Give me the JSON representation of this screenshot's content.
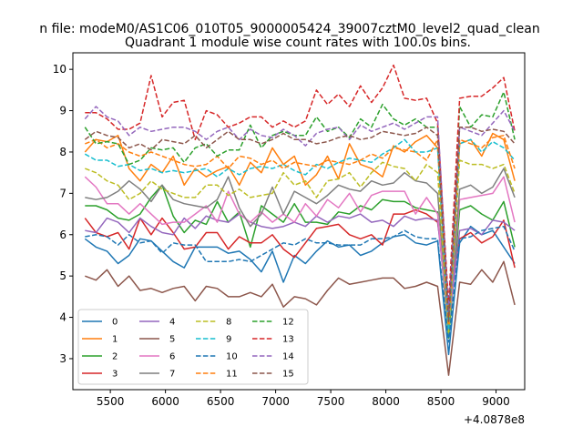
{
  "chart_data": {
    "type": "line",
    "suptitle": "n file: modeM0/AS1C06_010T05_9000005424_39007cztM0_level2_quad_clean",
    "title": "Quadrant 1 module wise count rates with 100.0s bins.",
    "xlabel": "",
    "ylabel": "",
    "x_offset_label": "+4.0878e8",
    "xlim": [
      5160,
      9260
    ],
    "ylim": [
      2.25,
      10.4
    ],
    "xticks": [
      5500,
      6000,
      6500,
      7000,
      7500,
      8000,
      8500,
      9000
    ],
    "yticks": [
      3,
      4,
      5,
      6,
      7,
      8,
      9,
      10
    ],
    "grid": false,
    "legend_position": "lower-left",
    "x": [
      5270,
      5370,
      5470,
      5570,
      5670,
      5770,
      5870,
      5970,
      6070,
      6170,
      6270,
      6370,
      6470,
      6570,
      6670,
      6770,
      6870,
      6970,
      7070,
      7170,
      7270,
      7370,
      7470,
      7570,
      7670,
      7770,
      7870,
      7970,
      8070,
      8170,
      8270,
      8370,
      8470,
      8570,
      8670,
      8770,
      8870,
      8970,
      9070,
      9170
    ],
    "series": [
      {
        "name": "0",
        "color": "#1f77b4",
        "dash": "solid",
        "values": [
          5.9,
          5.7,
          5.6,
          5.3,
          5.5,
          5.9,
          5.85,
          5.6,
          5.35,
          5.2,
          5.7,
          5.7,
          5.7,
          5.55,
          5.6,
          5.4,
          5.1,
          5.6,
          4.85,
          5.5,
          5.3,
          5.6,
          5.85,
          5.7,
          5.75,
          5.5,
          5.6,
          5.8,
          5.95,
          6.0,
          5.8,
          5.75,
          5.85,
          3.1,
          5.8,
          6.2,
          6.0,
          6.1,
          5.7,
          5.3
        ]
      },
      {
        "name": "1",
        "color": "#ff7f0e",
        "dash": "solid",
        "values": [
          8.0,
          8.3,
          8.25,
          8.4,
          7.6,
          7.3,
          7.7,
          7.5,
          7.9,
          7.2,
          7.6,
          7.4,
          7.55,
          7.65,
          7.2,
          7.75,
          7.5,
          8.1,
          7.7,
          7.9,
          7.2,
          7.45,
          7.9,
          7.35,
          8.2,
          7.7,
          7.6,
          7.4,
          8.15,
          8.0,
          8.25,
          8.4,
          8.1,
          3.6,
          8.2,
          8.3,
          7.9,
          8.45,
          8.3,
          7.3
        ]
      },
      {
        "name": "2",
        "color": "#2ca02c",
        "dash": "solid",
        "values": [
          6.7,
          6.7,
          6.6,
          6.4,
          6.35,
          6.5,
          6.9,
          7.2,
          6.45,
          6.05,
          6.35,
          6.25,
          6.8,
          6.3,
          6.55,
          5.7,
          6.7,
          6.5,
          6.3,
          6.75,
          6.3,
          6.3,
          6.25,
          6.55,
          6.5,
          6.7,
          6.6,
          6.85,
          6.8,
          6.8,
          6.65,
          6.6,
          6.55,
          3.5,
          6.6,
          6.7,
          6.5,
          6.35,
          6.8,
          5.7
        ]
      },
      {
        "name": "3",
        "color": "#d62728",
        "dash": "solid",
        "values": [
          6.4,
          6.05,
          5.95,
          6.05,
          5.65,
          6.4,
          6.0,
          6.4,
          6.05,
          5.65,
          5.7,
          6.05,
          6.05,
          5.65,
          5.95,
          5.8,
          5.8,
          6.0,
          5.65,
          5.45,
          5.8,
          6.15,
          6.2,
          6.25,
          6.0,
          5.9,
          6.0,
          5.75,
          6.5,
          6.5,
          6.6,
          6.5,
          6.3,
          4.3,
          5.9,
          6.05,
          5.8,
          5.95,
          6.35,
          5.2
        ]
      },
      {
        "name": "4",
        "color": "#9467bd",
        "dash": "solid",
        "values": [
          6.1,
          6.05,
          6.4,
          6.3,
          6.05,
          6.4,
          6.2,
          6.05,
          6.0,
          6.4,
          6.15,
          6.45,
          6.35,
          6.3,
          6.5,
          6.3,
          6.2,
          6.15,
          6.2,
          6.3,
          6.2,
          6.45,
          6.3,
          6.45,
          6.4,
          6.5,
          6.3,
          6.35,
          6.2,
          6.45,
          6.35,
          6.4,
          6.35,
          3.8,
          6.1,
          6.15,
          6.0,
          6.35,
          6.3,
          6.1
        ]
      },
      {
        "name": "5",
        "color": "#8c564b",
        "dash": "solid",
        "values": [
          5.0,
          4.9,
          5.15,
          4.75,
          5.0,
          4.65,
          4.7,
          4.6,
          4.7,
          4.75,
          4.4,
          4.75,
          4.7,
          4.5,
          4.5,
          4.6,
          4.5,
          4.8,
          4.25,
          4.5,
          4.45,
          4.3,
          4.65,
          4.95,
          4.8,
          4.85,
          4.9,
          4.95,
          4.95,
          4.7,
          4.75,
          4.85,
          4.75,
          2.6,
          4.85,
          4.8,
          5.15,
          4.85,
          5.35,
          4.3
        ]
      },
      {
        "name": "6",
        "color": "#e377c2",
        "dash": "solid",
        "values": [
          7.4,
          7.15,
          6.75,
          6.75,
          6.5,
          6.75,
          6.5,
          6.25,
          6.3,
          6.3,
          6.5,
          6.7,
          6.3,
          7.05,
          6.5,
          6.3,
          6.55,
          6.3,
          6.5,
          6.3,
          6.75,
          6.45,
          6.85,
          6.65,
          7.0,
          6.55,
          6.95,
          7.05,
          7.05,
          7.05,
          6.5,
          6.9,
          6.5,
          3.7,
          6.85,
          6.9,
          6.95,
          7.0,
          7.4,
          6.3
        ]
      },
      {
        "name": "7",
        "color": "#7f7f7f",
        "dash": "solid",
        "values": [
          6.9,
          6.85,
          6.9,
          7.05,
          7.3,
          7.1,
          6.8,
          7.2,
          6.85,
          6.75,
          6.7,
          6.65,
          6.85,
          7.4,
          6.65,
          6.2,
          6.5,
          7.15,
          6.5,
          7.05,
          6.9,
          6.75,
          6.95,
          7.2,
          7.1,
          7.05,
          7.3,
          7.2,
          7.25,
          7.5,
          7.3,
          7.25,
          7.0,
          3.8,
          7.1,
          7.2,
          7.0,
          7.15,
          7.6,
          6.9
        ]
      },
      {
        "name": "8",
        "color": "#bcbd22",
        "dash": "dashed",
        "values": [
          7.6,
          7.5,
          7.3,
          7.2,
          6.85,
          7.0,
          7.3,
          7.1,
          7.0,
          6.9,
          6.9,
          7.2,
          7.2,
          6.95,
          7.1,
          6.9,
          6.95,
          7.0,
          7.5,
          7.2,
          7.3,
          6.9,
          7.3,
          7.35,
          7.5,
          7.15,
          7.5,
          7.75,
          7.65,
          7.6,
          7.3,
          7.7,
          7.5,
          3.6,
          7.8,
          7.7,
          7.7,
          7.6,
          7.7,
          7.0
        ]
      },
      {
        "name": "9",
        "color": "#17becf",
        "dash": "dashed",
        "values": [
          7.95,
          7.8,
          7.8,
          7.65,
          7.7,
          7.55,
          7.6,
          7.5,
          7.55,
          7.5,
          7.55,
          7.6,
          7.4,
          7.6,
          7.45,
          7.6,
          7.65,
          7.6,
          7.7,
          7.55,
          7.45,
          7.7,
          7.6,
          7.75,
          7.85,
          7.8,
          7.75,
          7.95,
          8.1,
          8.3,
          8.0,
          8.0,
          8.1,
          3.7,
          8.2,
          8.3,
          8.0,
          8.25,
          8.1,
          7.8
        ]
      },
      {
        "name": "10",
        "color": "#1f77b4",
        "dash": "dashed",
        "values": [
          5.95,
          6.0,
          5.95,
          5.75,
          6.0,
          5.8,
          5.85,
          5.55,
          5.8,
          5.75,
          5.75,
          5.35,
          5.35,
          5.35,
          5.4,
          5.35,
          5.5,
          5.65,
          5.8,
          5.75,
          5.9,
          5.8,
          5.8,
          5.75,
          5.75,
          5.75,
          5.9,
          5.9,
          5.95,
          6.1,
          5.95,
          5.9,
          5.9,
          3.4,
          5.9,
          5.95,
          6.1,
          6.15,
          6.2,
          5.6
        ]
      },
      {
        "name": "11",
        "color": "#ff7f0e",
        "dash": "dashed",
        "values": [
          8.2,
          8.3,
          8.1,
          8.2,
          8.0,
          7.9,
          8.0,
          7.9,
          7.8,
          7.7,
          7.65,
          7.7,
          7.9,
          7.6,
          7.9,
          7.85,
          7.7,
          7.8,
          7.6,
          7.75,
          7.7,
          7.65,
          7.8,
          7.75,
          7.7,
          7.8,
          7.95,
          7.85,
          8.1,
          8.05,
          8.0,
          7.8,
          8.3,
          3.8,
          8.3,
          8.2,
          8.1,
          8.35,
          8.4,
          7.6
        ]
      },
      {
        "name": "12",
        "color": "#2ca02c",
        "dash": "dashed",
        "values": [
          8.6,
          8.2,
          8.25,
          8.2,
          7.7,
          7.8,
          8.1,
          8.05,
          8.1,
          7.75,
          8.1,
          8.2,
          7.9,
          8.05,
          8.05,
          8.65,
          8.1,
          8.4,
          8.5,
          8.4,
          8.4,
          8.85,
          8.5,
          8.6,
          8.35,
          8.8,
          8.6,
          9.15,
          8.8,
          8.65,
          8.8,
          8.6,
          8.6,
          4.0,
          9.1,
          8.6,
          8.9,
          8.85,
          9.45,
          8.3
        ]
      },
      {
        "name": "13",
        "color": "#d62728",
        "dash": "dashed",
        "values": [
          8.95,
          8.95,
          8.8,
          8.55,
          8.55,
          8.7,
          9.85,
          8.85,
          9.2,
          9.25,
          8.3,
          9.0,
          8.9,
          8.6,
          8.7,
          8.85,
          8.85,
          8.6,
          8.75,
          8.6,
          8.75,
          9.5,
          9.15,
          9.4,
          9.1,
          9.6,
          9.2,
          9.55,
          10.1,
          9.3,
          9.25,
          9.3,
          8.7,
          4.3,
          9.3,
          9.35,
          9.35,
          9.55,
          9.8,
          8.5
        ]
      },
      {
        "name": "14",
        "color": "#9467bd",
        "dash": "dashed",
        "values": [
          8.8,
          9.1,
          8.85,
          8.75,
          8.4,
          8.6,
          8.5,
          8.55,
          8.6,
          8.6,
          8.5,
          8.3,
          8.5,
          8.6,
          8.3,
          8.55,
          8.4,
          8.35,
          8.55,
          8.4,
          8.15,
          8.45,
          8.55,
          8.6,
          8.3,
          8.65,
          8.5,
          8.6,
          8.7,
          8.55,
          8.7,
          8.85,
          8.85,
          4.1,
          8.6,
          8.5,
          8.4,
          8.7,
          9.0,
          8.5
        ]
      },
      {
        "name": "15",
        "color": "#8c564b",
        "dash": "dashed",
        "values": [
          8.3,
          8.5,
          8.4,
          8.35,
          8.1,
          8.2,
          8.05,
          8.3,
          8.25,
          8.2,
          8.4,
          8.1,
          8.3,
          8.5,
          8.3,
          8.3,
          8.2,
          8.3,
          8.45,
          8.3,
          8.3,
          8.2,
          8.25,
          8.35,
          8.4,
          8.3,
          8.35,
          8.5,
          8.45,
          8.4,
          8.45,
          8.6,
          8.4,
          3.9,
          8.6,
          8.6,
          8.5,
          8.55,
          8.5,
          8.2
        ]
      }
    ]
  }
}
